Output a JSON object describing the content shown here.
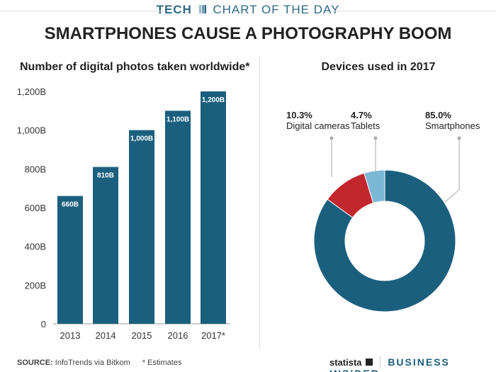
{
  "header": {
    "kicker_tag": "TECH",
    "kicker_text": "CHART OF THE DAY",
    "title": "SMARTPHONES CAUSE A PHOTOGRAPHY BOOM"
  },
  "footer": {
    "source_label": "SOURCE:",
    "source_text": "InfoTrends via Bitkom",
    "note": "* Estimates",
    "brand1": "statista",
    "brand2": "BUSINESS INSIDER"
  },
  "chart_data": [
    {
      "type": "bar",
      "title": "Number of digital photos taken worldwide*",
      "categories": [
        "2013",
        "2014",
        "2015",
        "2016",
        "2017*"
      ],
      "values": [
        660,
        810,
        1000,
        1100,
        1200
      ],
      "data_labels": [
        "660B",
        "810B",
        "1,000B",
        "1,100B",
        "1,200B"
      ],
      "yticks": [
        "0",
        "200B",
        "400B",
        "600B",
        "800B",
        "1,000B",
        "1,200B"
      ],
      "ylim": [
        0,
        1200
      ],
      "unit": "B",
      "color": "#1b5f7e"
    },
    {
      "type": "pie",
      "title": "Devices used in 2017",
      "donut": true,
      "slices": [
        {
          "name": "Smartphones",
          "value": 85.0,
          "label": "85.0%",
          "color": "#1b5f7e"
        },
        {
          "name": "Digital cameras",
          "value": 10.3,
          "label": "10.3%",
          "color": "#c1272d"
        },
        {
          "name": "Tablets",
          "value": 4.7,
          "label": "4.7%",
          "color": "#7ab8d6"
        }
      ]
    }
  ]
}
